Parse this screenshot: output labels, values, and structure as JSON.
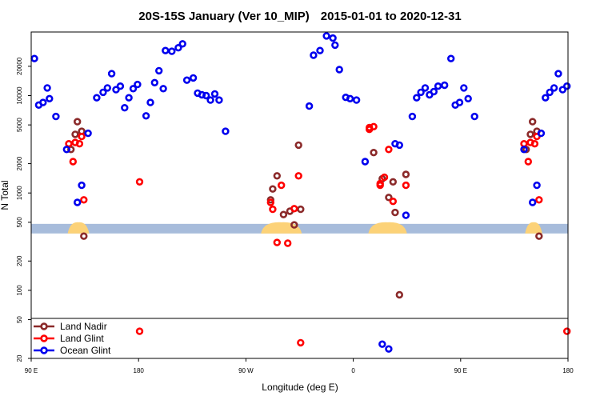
{
  "chart_data": {
    "type": "scatter",
    "title": "20S-15S January (Ver 10_MIP)",
    "date_range": "2015-01-01 to 2020-12-31",
    "xlabel": "Longitude (deg E)",
    "ylabel": "N Total",
    "x_scale": "linear",
    "y_scale": "log",
    "xlim": [
      90,
      340
    ],
    "ylim": [
      20,
      45000
    ],
    "x_ticks": [
      {
        "value": 90,
        "label": "90 E"
      },
      {
        "value": 140,
        "label": "180"
      },
      {
        "value": 190,
        "label": "90 W"
      },
      {
        "value": 240,
        "label": "0"
      },
      {
        "value": 290,
        "label": "90 E"
      },
      {
        "value": 340,
        "label": "180"
      }
    ],
    "y_ticks": [
      {
        "value": 20,
        "label": "20"
      },
      {
        "value": 50,
        "label": "50"
      },
      {
        "value": 100,
        "label": "100"
      },
      {
        "value": 200,
        "label": "200"
      },
      {
        "value": 500,
        "label": "500"
      },
      {
        "value": 1000,
        "label": "1000"
      },
      {
        "value": 2000,
        "label": "2000"
      },
      {
        "value": 5000,
        "label": "5000"
      },
      {
        "value": 10000,
        "label": "10000"
      },
      {
        "value": 20000,
        "label": "20000"
      }
    ],
    "legend_position": "bottom-left",
    "series": [
      {
        "name": "Land Nadir",
        "color": "#8B2A2A",
        "points": [
          [
            108.5,
            2800
          ],
          [
            110.5,
            4000
          ],
          [
            111.5,
            5400
          ],
          [
            113.5,
            4300
          ],
          [
            114.5,
            360
          ],
          [
            201.5,
            850
          ],
          [
            202.5,
            1100
          ],
          [
            204.5,
            1500
          ],
          [
            207.5,
            600
          ],
          [
            210.5,
            650
          ],
          [
            212.5,
            470
          ],
          [
            214.5,
            3100
          ],
          [
            215.5,
            680
          ],
          [
            249.5,
            2600
          ],
          [
            253.5,
            1400
          ],
          [
            256.5,
            900
          ],
          [
            258.5,
            1300
          ],
          [
            259.5,
            630
          ],
          [
            261.5,
            90
          ],
          [
            264.5,
            1550
          ],
          [
            320.5,
            2800
          ],
          [
            322.5,
            4000
          ],
          [
            323.5,
            5400
          ],
          [
            325.5,
            4300
          ],
          [
            326.5,
            360
          ]
        ]
      },
      {
        "name": "Land Glint",
        "color": "#FF0000",
        "points": [
          [
            107.5,
            3200
          ],
          [
            109.5,
            2100
          ],
          [
            110.5,
            3300
          ],
          [
            112.5,
            3200
          ],
          [
            113.5,
            3800
          ],
          [
            114.5,
            850
          ],
          [
            140.5,
            38
          ],
          [
            140.5,
            1300
          ],
          [
            201.5,
            800
          ],
          [
            202.5,
            680
          ],
          [
            204.5,
            310
          ],
          [
            206.5,
            1200
          ],
          [
            209.5,
            305
          ],
          [
            212.5,
            690
          ],
          [
            214.5,
            1500
          ],
          [
            215.5,
            29
          ],
          [
            247.5,
            4700
          ],
          [
            247.5,
            4500
          ],
          [
            249.5,
            4800
          ],
          [
            252.5,
            1200
          ],
          [
            252.5,
            1250
          ],
          [
            254.5,
            1450
          ],
          [
            256.5,
            2800
          ],
          [
            258.5,
            820
          ],
          [
            264.5,
            1200
          ],
          [
            319.5,
            3200
          ],
          [
            321.5,
            2100
          ],
          [
            322.5,
            3300
          ],
          [
            324.5,
            3200
          ],
          [
            325.5,
            3800
          ],
          [
            326.5,
            850
          ],
          [
            339.5,
            38
          ]
        ]
      },
      {
        "name": "Ocean Glint",
        "color": "#0000EE",
        "points": [
          [
            91.5,
            24000
          ],
          [
            93.5,
            8000
          ],
          [
            95.5,
            8500
          ],
          [
            97.5,
            12000
          ],
          [
            98.5,
            9300
          ],
          [
            101.5,
            6100
          ],
          [
            106.5,
            2800
          ],
          [
            111.5,
            800
          ],
          [
            113.5,
            1200
          ],
          [
            116.5,
            4100
          ],
          [
            120.5,
            9500
          ],
          [
            123.5,
            10800
          ],
          [
            125.5,
            12000
          ],
          [
            127.5,
            16800
          ],
          [
            129.5,
            11500
          ],
          [
            131.5,
            12500
          ],
          [
            133.5,
            7500
          ],
          [
            135.5,
            9500
          ],
          [
            137.5,
            11800
          ],
          [
            139.5,
            13000
          ],
          [
            143.5,
            6200
          ],
          [
            145.5,
            8500
          ],
          [
            147.5,
            13600
          ],
          [
            149.5,
            18000
          ],
          [
            151.5,
            11800
          ],
          [
            152.5,
            29000
          ],
          [
            155.5,
            28500
          ],
          [
            158.5,
            31000
          ],
          [
            160.5,
            34000
          ],
          [
            162.5,
            14400
          ],
          [
            165.5,
            15200
          ],
          [
            167.5,
            10600
          ],
          [
            169.5,
            10200
          ],
          [
            171.5,
            10000
          ],
          [
            173.5,
            9000
          ],
          [
            175.5,
            10400
          ],
          [
            177.5,
            9000
          ],
          [
            180.5,
            4300
          ],
          [
            219.5,
            7800
          ],
          [
            221.5,
            26000
          ],
          [
            224.5,
            29000
          ],
          [
            227.5,
            41000
          ],
          [
            230.5,
            39000
          ],
          [
            231.5,
            33000
          ],
          [
            233.5,
            18500
          ],
          [
            236.5,
            9600
          ],
          [
            238.5,
            9300
          ],
          [
            241.5,
            9000
          ],
          [
            245.5,
            2100
          ],
          [
            253.5,
            28
          ],
          [
            256.5,
            25
          ],
          [
            259.5,
            3200
          ],
          [
            261.5,
            3100
          ],
          [
            264.5,
            590
          ],
          [
            267.5,
            6100
          ],
          [
            269.5,
            9500
          ],
          [
            271.5,
            10800
          ],
          [
            273.5,
            12000
          ],
          [
            275.5,
            10200
          ],
          [
            277.5,
            11000
          ],
          [
            279.5,
            12500
          ],
          [
            282.5,
            12800
          ],
          [
            285.5,
            24000
          ],
          [
            287.5,
            8000
          ],
          [
            289.5,
            8500
          ],
          [
            291.5,
            12000
          ],
          [
            293.5,
            9300
          ],
          [
            296.5,
            6100
          ],
          [
            319.5,
            2800
          ],
          [
            323.5,
            800
          ],
          [
            325.5,
            1200
          ],
          [
            327.5,
            4100
          ],
          [
            329.5,
            9500
          ],
          [
            331.5,
            10800
          ],
          [
            333.5,
            12000
          ],
          [
            335.5,
            16800
          ],
          [
            337.5,
            11500
          ],
          [
            339.5,
            12500
          ]
        ]
      }
    ],
    "mask_band": {
      "y_value": 430,
      "base_color": "#A7BCDB",
      "land_color": "#FCD278",
      "land_ranges": [
        [
          107,
          117
        ],
        [
          197,
          216
        ],
        [
          247,
          265
        ],
        [
          320,
          328
        ]
      ]
    }
  }
}
